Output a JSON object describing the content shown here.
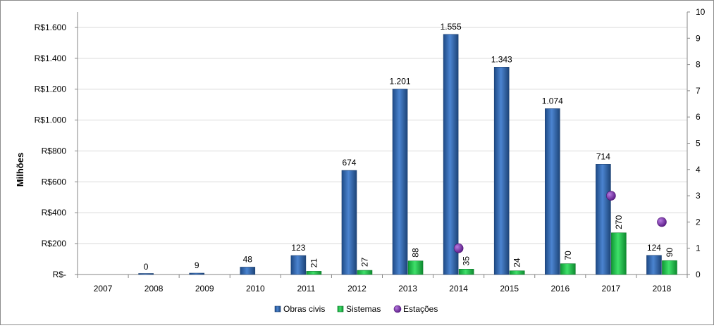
{
  "chart_data": {
    "type": "bar",
    "categories": [
      "2007",
      "2008",
      "2009",
      "2010",
      "2011",
      "2012",
      "2013",
      "2014",
      "2015",
      "2016",
      "2017",
      "2018"
    ],
    "series": [
      {
        "name": "Obras civis",
        "axis": "left",
        "color": "#2e62a8",
        "values": [
          null,
          0,
          9,
          48,
          123,
          674,
          1201,
          1555,
          1343,
          1074,
          714,
          124
        ],
        "labels": [
          "",
          "0",
          "9",
          "48",
          "123",
          "674",
          "1.201",
          "1.555",
          "1.343",
          "1.074",
          "714",
          "124"
        ]
      },
      {
        "name": "Sistemas",
        "axis": "left",
        "color": "#19c149",
        "values": [
          null,
          null,
          null,
          null,
          21,
          27,
          88,
          35,
          24,
          70,
          270,
          90
        ],
        "labels": [
          "",
          "",
          "",
          "",
          "21",
          "27",
          "88",
          "35",
          "24",
          "70",
          "270",
          "90"
        ]
      },
      {
        "name": "Estações",
        "axis": "right",
        "color": "#7a2fa6",
        "type": "scatter",
        "values": [
          null,
          null,
          null,
          null,
          null,
          null,
          null,
          1,
          null,
          null,
          3,
          2
        ]
      }
    ],
    "ylabel": "Milhões",
    "ylim": [
      0,
      1700
    ],
    "yticks": [
      0,
      200,
      400,
      600,
      800,
      1000,
      1200,
      1400,
      1600
    ],
    "ytick_labels": [
      "R$-",
      "R$200",
      "R$400",
      "R$600",
      "R$800",
      "R$1.000",
      "R$1.200",
      "R$1.400",
      "R$1.600"
    ],
    "y2lim": [
      0,
      10
    ],
    "y2ticks": [
      "0",
      "1",
      "2",
      "3",
      "4",
      "5",
      "6",
      "7",
      "8",
      "9",
      "10"
    ],
    "grid": true,
    "legend_position": "bottom-center"
  }
}
